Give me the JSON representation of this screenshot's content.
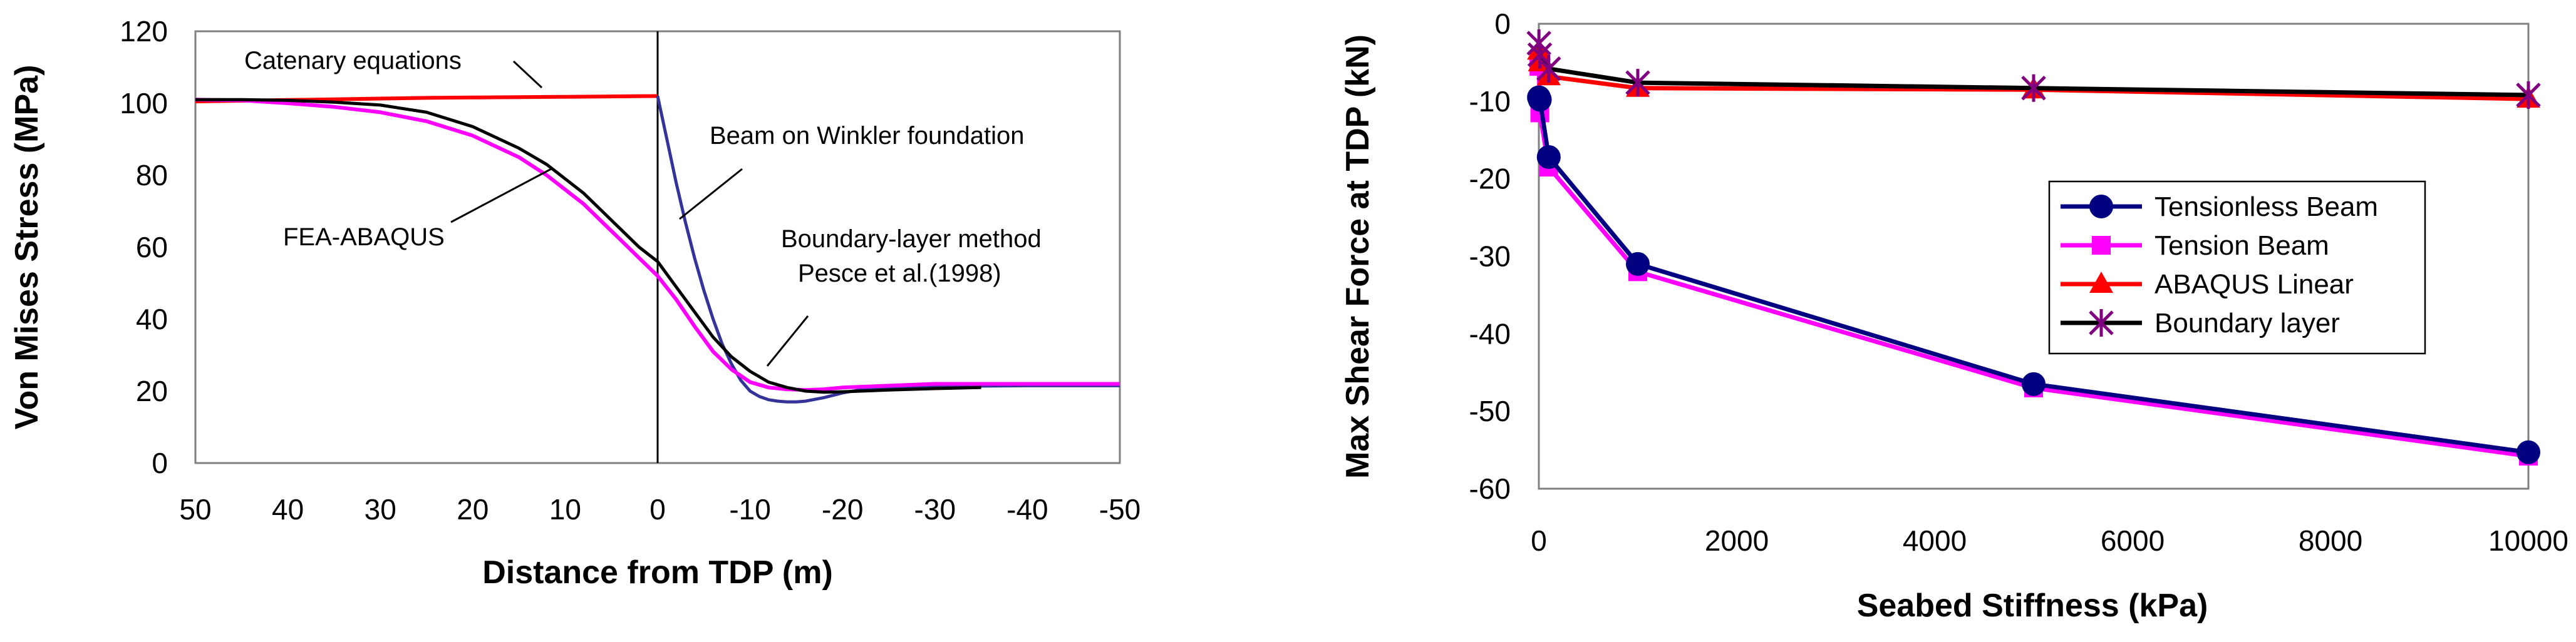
{
  "chart_data": [
    {
      "type": "line",
      "xlabel": "Distance from TDP (m)",
      "ylabel": "Von Mises Stress (MPa)",
      "xlim": [
        50,
        -50
      ],
      "ylim": [
        0,
        120
      ],
      "x_ticks": [
        50,
        40,
        30,
        20,
        10,
        0,
        -10,
        -20,
        -30,
        -40,
        -50
      ],
      "y_ticks": [
        0,
        20,
        40,
        60,
        80,
        100,
        120
      ],
      "x_reversed": true,
      "grid": false,
      "colors": {
        "catenary": "#ff0000",
        "winkler": "#333399",
        "fea": "#ff00ff",
        "boundary": "#000000",
        "vline": "#000000"
      },
      "annotations": [
        {
          "text": "Catenary equations",
          "target_series": "Catenary equations"
        },
        {
          "text": "Beam on Winkler foundation",
          "target_series": "Beam on Winkler foundation"
        },
        {
          "text": "FEA-ABAQUS",
          "target_series": "FEA-ABAQUS"
        },
        {
          "text": "Boundary-layer method",
          "target_series": "Boundary-layer method"
        },
        {
          "text": "Pesce et al.(1998)",
          "target_series": "Boundary-layer method"
        }
      ],
      "series": [
        {
          "name": "Catenary equations",
          "x": [
            50,
            45,
            40,
            35,
            30,
            25,
            20,
            15,
            10,
            5,
            0
          ],
          "y": [
            100.5,
            100.7,
            100.9,
            101.1,
            101.3,
            101.5,
            101.6,
            101.7,
            101.8,
            101.9,
            102
          ]
        },
        {
          "name": "Beam on Winkler foundation",
          "x": [
            0,
            -1,
            -2,
            -3,
            -4,
            -5,
            -6,
            -7,
            -8,
            -9,
            -10,
            -11,
            -12,
            -13,
            -14,
            -15,
            -16,
            -18,
            -20,
            -22,
            -25,
            -30,
            -40,
            -50
          ],
          "y": [
            102,
            90,
            78,
            67,
            57,
            48,
            40,
            33,
            27.5,
            23,
            20,
            18.5,
            17.6,
            17.2,
            17.0,
            17.0,
            17.2,
            18.2,
            19.5,
            20.4,
            21,
            21.3,
            21.5,
            21.5
          ]
        },
        {
          "name": "FEA-ABAQUS",
          "x": [
            50,
            45,
            40,
            35,
            30,
            25,
            20,
            15,
            12,
            10,
            8,
            6,
            4,
            2,
            0,
            -2,
            -4,
            -6,
            -8,
            -10,
            -12,
            -14,
            -16,
            -18,
            -20,
            -25,
            -30,
            -40,
            -50
          ],
          "y": [
            101,
            100.8,
            100,
            99,
            97.5,
            95,
            91,
            85,
            80,
            76,
            72,
            67,
            62,
            57,
            52,
            45.5,
            38,
            31,
            26,
            22.5,
            21,
            20.5,
            20.3,
            20.5,
            21,
            21.5,
            22,
            22,
            22
          ]
        },
        {
          "name": "Boundary-layer method",
          "x": [
            50,
            45,
            40,
            35,
            30,
            25,
            20,
            15,
            12,
            10,
            8,
            6,
            4,
            2,
            0,
            -2,
            -4,
            -6,
            -8,
            -10,
            -12,
            -14,
            -16,
            -18,
            -20,
            -22,
            -25,
            -30,
            -35
          ],
          "y": [
            101,
            101,
            100.8,
            100.3,
            99.5,
            97.5,
            93.5,
            87.5,
            83,
            79,
            75,
            70,
            65,
            60,
            56,
            49,
            42,
            35,
            29.5,
            25.5,
            22.5,
            21,
            20,
            19.7,
            19.8,
            20,
            20.3,
            20.7,
            21
          ]
        }
      ]
    },
    {
      "type": "line",
      "xlabel": "Seabed Stiffness (kPa)",
      "ylabel": "Max Shear Force at TDP (kN)",
      "xlim": [
        0,
        10000
      ],
      "ylim": [
        -60,
        0
      ],
      "x_ticks": [
        0,
        2000,
        4000,
        6000,
        8000,
        10000
      ],
      "y_ticks": [
        0,
        -10,
        -20,
        -30,
        -40,
        -50,
        -60
      ],
      "grid": false,
      "legend_position": "right",
      "series": [
        {
          "name": "Tensionless Beam",
          "color": "#000080",
          "marker": "circle",
          "x": [
            1,
            10,
            100,
            1000,
            5000,
            10000
          ],
          "y": [
            -9.5,
            -9.8,
            -17.2,
            -31,
            -46.5,
            -55.3
          ]
        },
        {
          "name": "Tension Beam",
          "color": "#ff00ff",
          "marker": "square",
          "x": [
            1,
            10,
            100,
            1000,
            5000,
            10000
          ],
          "y": [
            -5.5,
            -11.5,
            -18.5,
            -32,
            -47,
            -55.8
          ]
        },
        {
          "name": "ABAQUS Linear",
          "color": "#ff0000",
          "marker": "triangle",
          "x": [
            1,
            10,
            100,
            1000,
            5000,
            10000
          ],
          "y": [
            -3.5,
            -5,
            -6.8,
            -8.3,
            -8.5,
            -9.7
          ]
        },
        {
          "name": "Boundary layer",
          "color": "#000000",
          "marker": "star",
          "marker_color": "#800080",
          "x": [
            1,
            10,
            100,
            1000,
            5000,
            10000
          ],
          "y": [
            -2.5,
            -4,
            -5.8,
            -7.6,
            -8.3,
            -9.2
          ]
        }
      ]
    }
  ]
}
